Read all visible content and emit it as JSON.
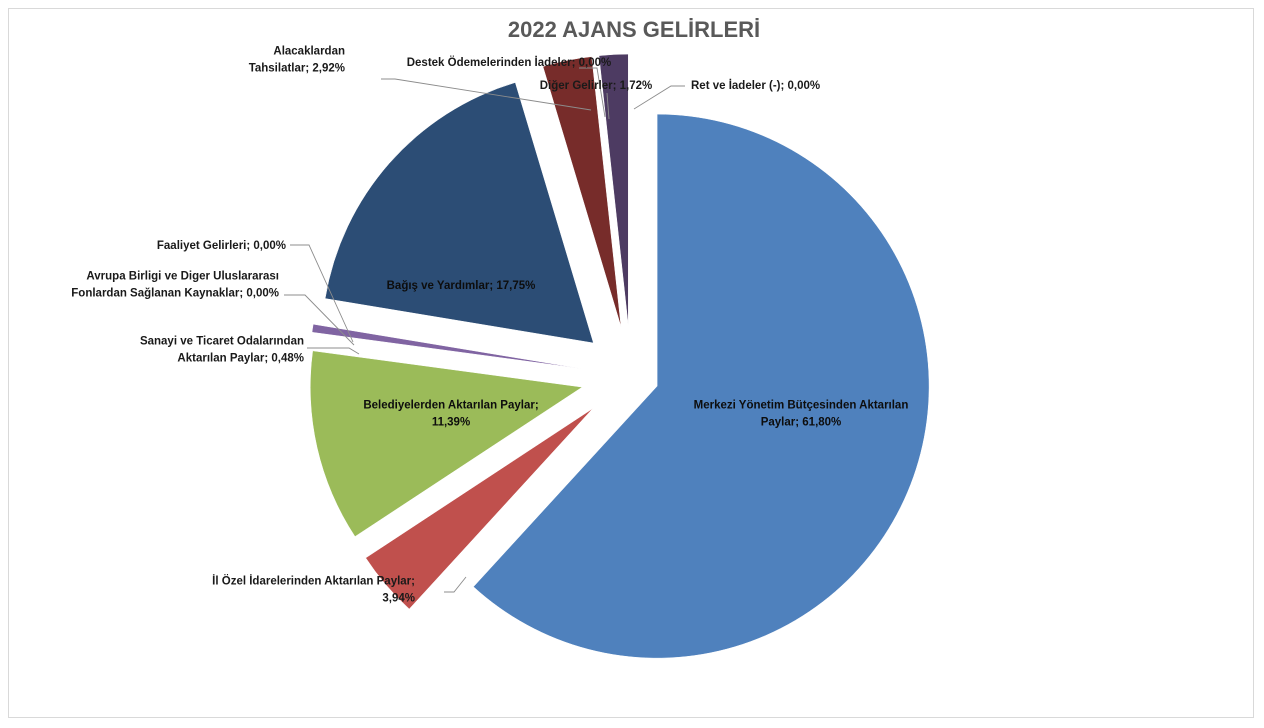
{
  "chart_data": {
    "type": "pie",
    "title": "2022 AJANS GELİRLERİ",
    "slices": [
      {
        "name": "Merkezi Yönetim Bütçesinden Aktarılan Paylar",
        "value": 61.8,
        "label_lines": [
          "Merkezi Yönetim Bütçesinden Aktarılan",
          "Paylar; 61,80%"
        ],
        "color": "#4f81bd"
      },
      {
        "name": "İl Özel İdarelerinden Aktarılan Paylar",
        "value": 3.94,
        "label_lines": [
          "İl Özel İdarelerinden Aktarılan Paylar;",
          "3,94%"
        ],
        "color": "#c0504d"
      },
      {
        "name": "Belediyelerden Aktarılan Paylar",
        "value": 11.39,
        "label_lines": [
          "Belediyelerden Aktarılan Paylar;",
          "11,39%"
        ],
        "color": "#9bbb59"
      },
      {
        "name": "Sanayi ve Ticaret Odalarından Aktarılan Paylar",
        "value": 0.48,
        "label_lines": [
          "Sanayi ve Ticaret Odalarından",
          "Aktarılan Paylar; 0,48%"
        ],
        "color": "#8064a2"
      },
      {
        "name": "Avrupa Birligi ve Diger Uluslararası Fonlardan Sağlanan Kaynaklar",
        "value": 0.0,
        "label_lines": [
          "Avrupa Birligi ve Diger Uluslararası",
          "Fonlardan Sağlanan Kaynaklar; 0,00%"
        ],
        "color": "#4bacc6"
      },
      {
        "name": "Faaliyet Gelirleri",
        "value": 0.0,
        "label_lines": [
          "Faaliyet Gelirleri; 0,00%"
        ],
        "color": "#f79646"
      },
      {
        "name": "Bağış ve Yardımlar",
        "value": 17.75,
        "label_lines": [
          "Bağış ve Yardımlar; 17,75%"
        ],
        "color": "#2c4d75"
      },
      {
        "name": "Alacaklardan Tahsilatlar",
        "value": 2.92,
        "label_lines": [
          "Alacaklardan",
          "Tahsilatlar; 2,92%"
        ],
        "color": "#772c2a"
      },
      {
        "name": "Destek Ödemelerinden İadeler",
        "value": 0.0,
        "label_lines": [
          "Destek Ödemelerinden İadeler; 0,00%"
        ],
        "color": "#5f7530"
      },
      {
        "name": "Diğer Gelirler",
        "value": 1.72,
        "label_lines": [
          "Diğer Gelirler; 1,72%"
        ],
        "color": "#4d3b62"
      },
      {
        "name": "Ret ve İadeler (-)",
        "value": 0.0,
        "label_lines": [
          "Ret ve İadeler (-); 0,00%"
        ],
        "color": "#276a7c"
      }
    ],
    "legend": "none",
    "data_labels": "category; percent"
  }
}
